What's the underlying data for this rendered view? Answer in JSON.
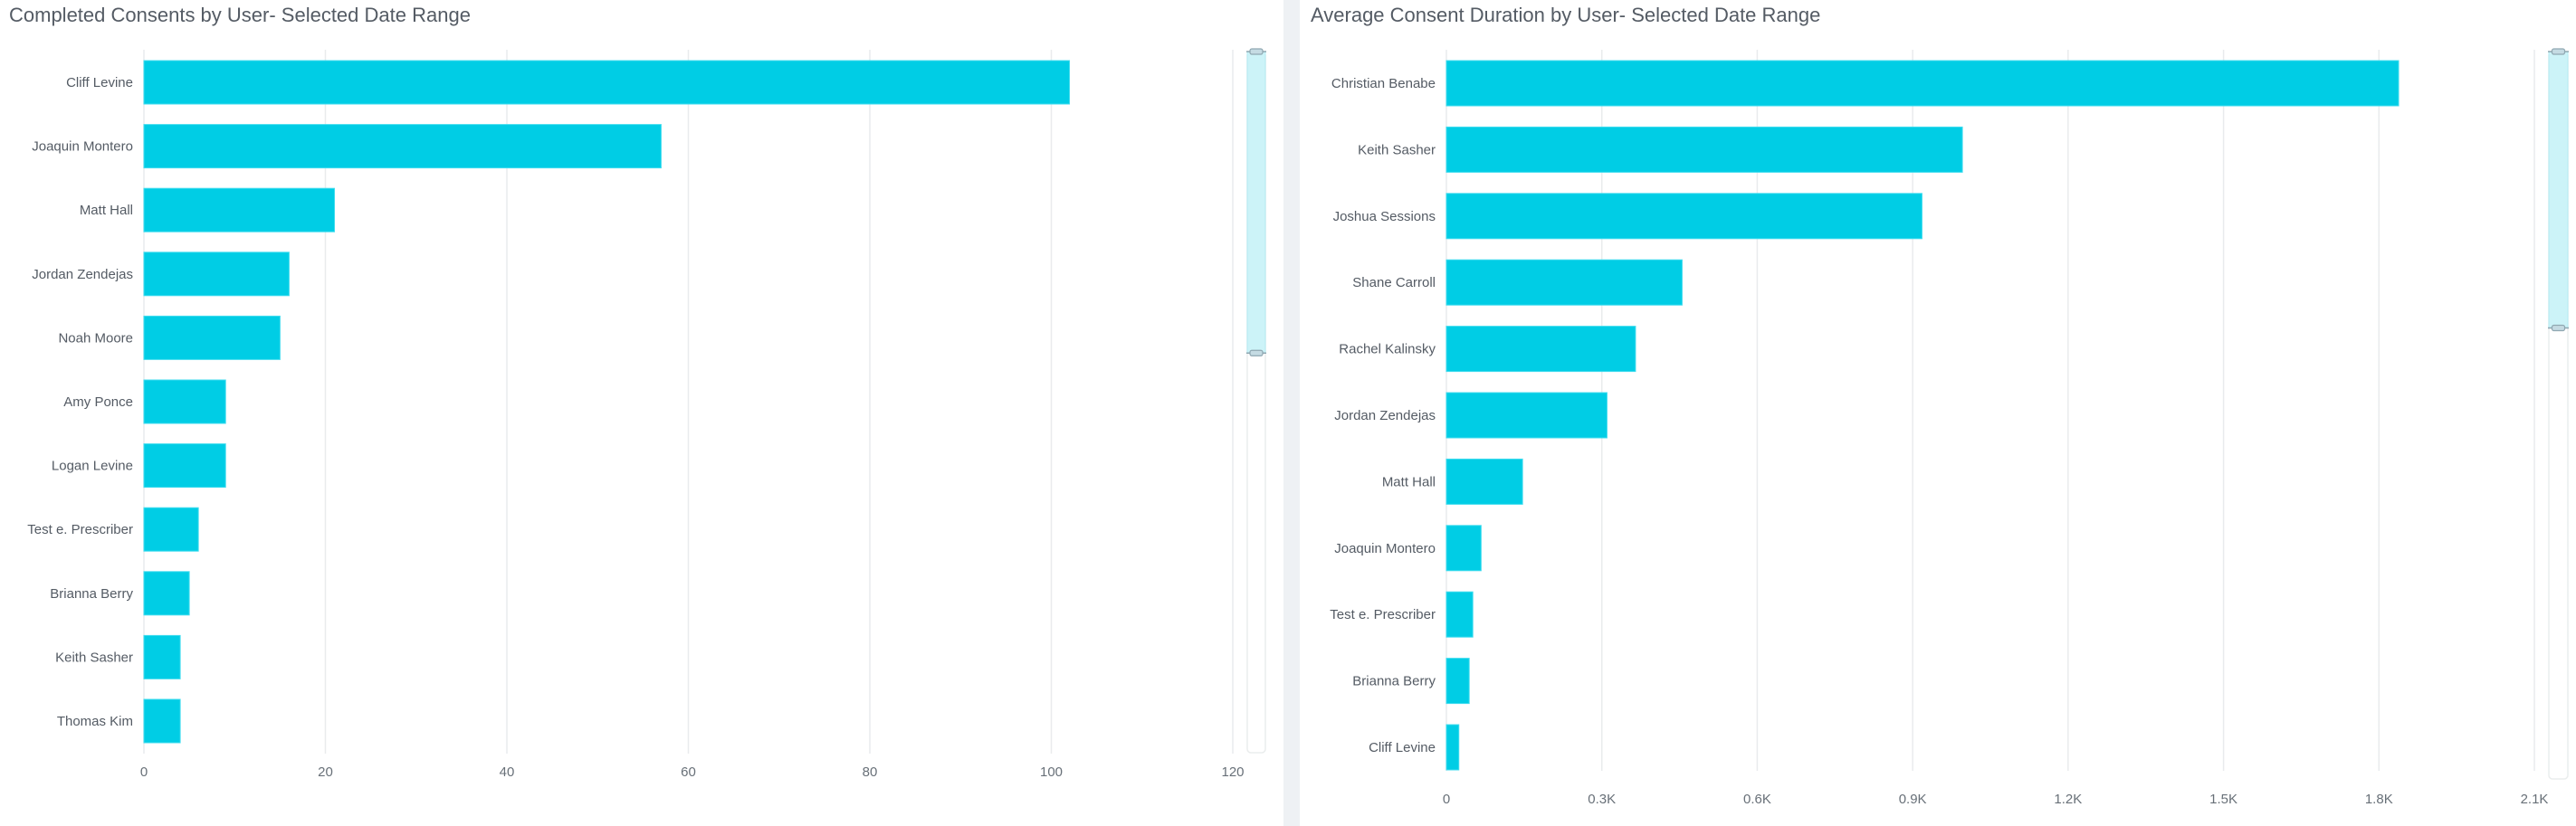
{
  "chart_data": [
    {
      "type": "bar",
      "orientation": "horizontal",
      "title": "Completed Consents by User- Selected Date Range",
      "xlabel": "",
      "ylabel": "",
      "categories": [
        "Cliff Levine",
        "Joaquin Montero",
        "Matt Hall",
        "Jordan Zendejas",
        "Noah Moore",
        "Amy Ponce",
        "Logan Levine",
        "Test e. Prescriber",
        "Brianna Berry",
        "Keith Sasher",
        "Thomas Kim"
      ],
      "values": [
        102,
        57,
        21,
        16,
        15,
        9,
        9,
        6,
        5,
        4,
        4
      ],
      "xlim": [
        0,
        120
      ],
      "ticks": [
        0,
        20,
        40,
        60,
        80,
        100,
        120
      ],
      "tick_labels": [
        "0",
        "20",
        "40",
        "60",
        "80",
        "100",
        "120"
      ],
      "grid": true,
      "color": "#00cde5",
      "scrollbar": {
        "visible_fraction": 0.43
      }
    },
    {
      "type": "bar",
      "orientation": "horizontal",
      "title": "Average Consent Duration by User- Selected Date Range",
      "xlabel": "",
      "ylabel": "",
      "categories": [
        "Christian Benabe",
        "Keith Sasher",
        "Joshua Sessions",
        "Shane Carroll",
        "Rachel Kalinsky",
        "Jordan Zendejas",
        "Matt Hall",
        "Joaquin Montero",
        "Test e. Prescriber",
        "Brianna Berry",
        "Cliff Levine"
      ],
      "values": [
        1838,
        996,
        918,
        455,
        365,
        310,
        147,
        67,
        51,
        44,
        24
      ],
      "xlim": [
        0,
        2100
      ],
      "ticks": [
        0,
        300,
        600,
        900,
        1200,
        1500,
        1800,
        2100
      ],
      "tick_labels": [
        "0",
        "0.3K",
        "0.6K",
        "0.9K",
        "1.2K",
        "1.5K",
        "1.8K",
        "2.1K"
      ],
      "grid": true,
      "color": "#00cde5",
      "scrollbar": {
        "visible_fraction": 0.38
      }
    }
  ]
}
